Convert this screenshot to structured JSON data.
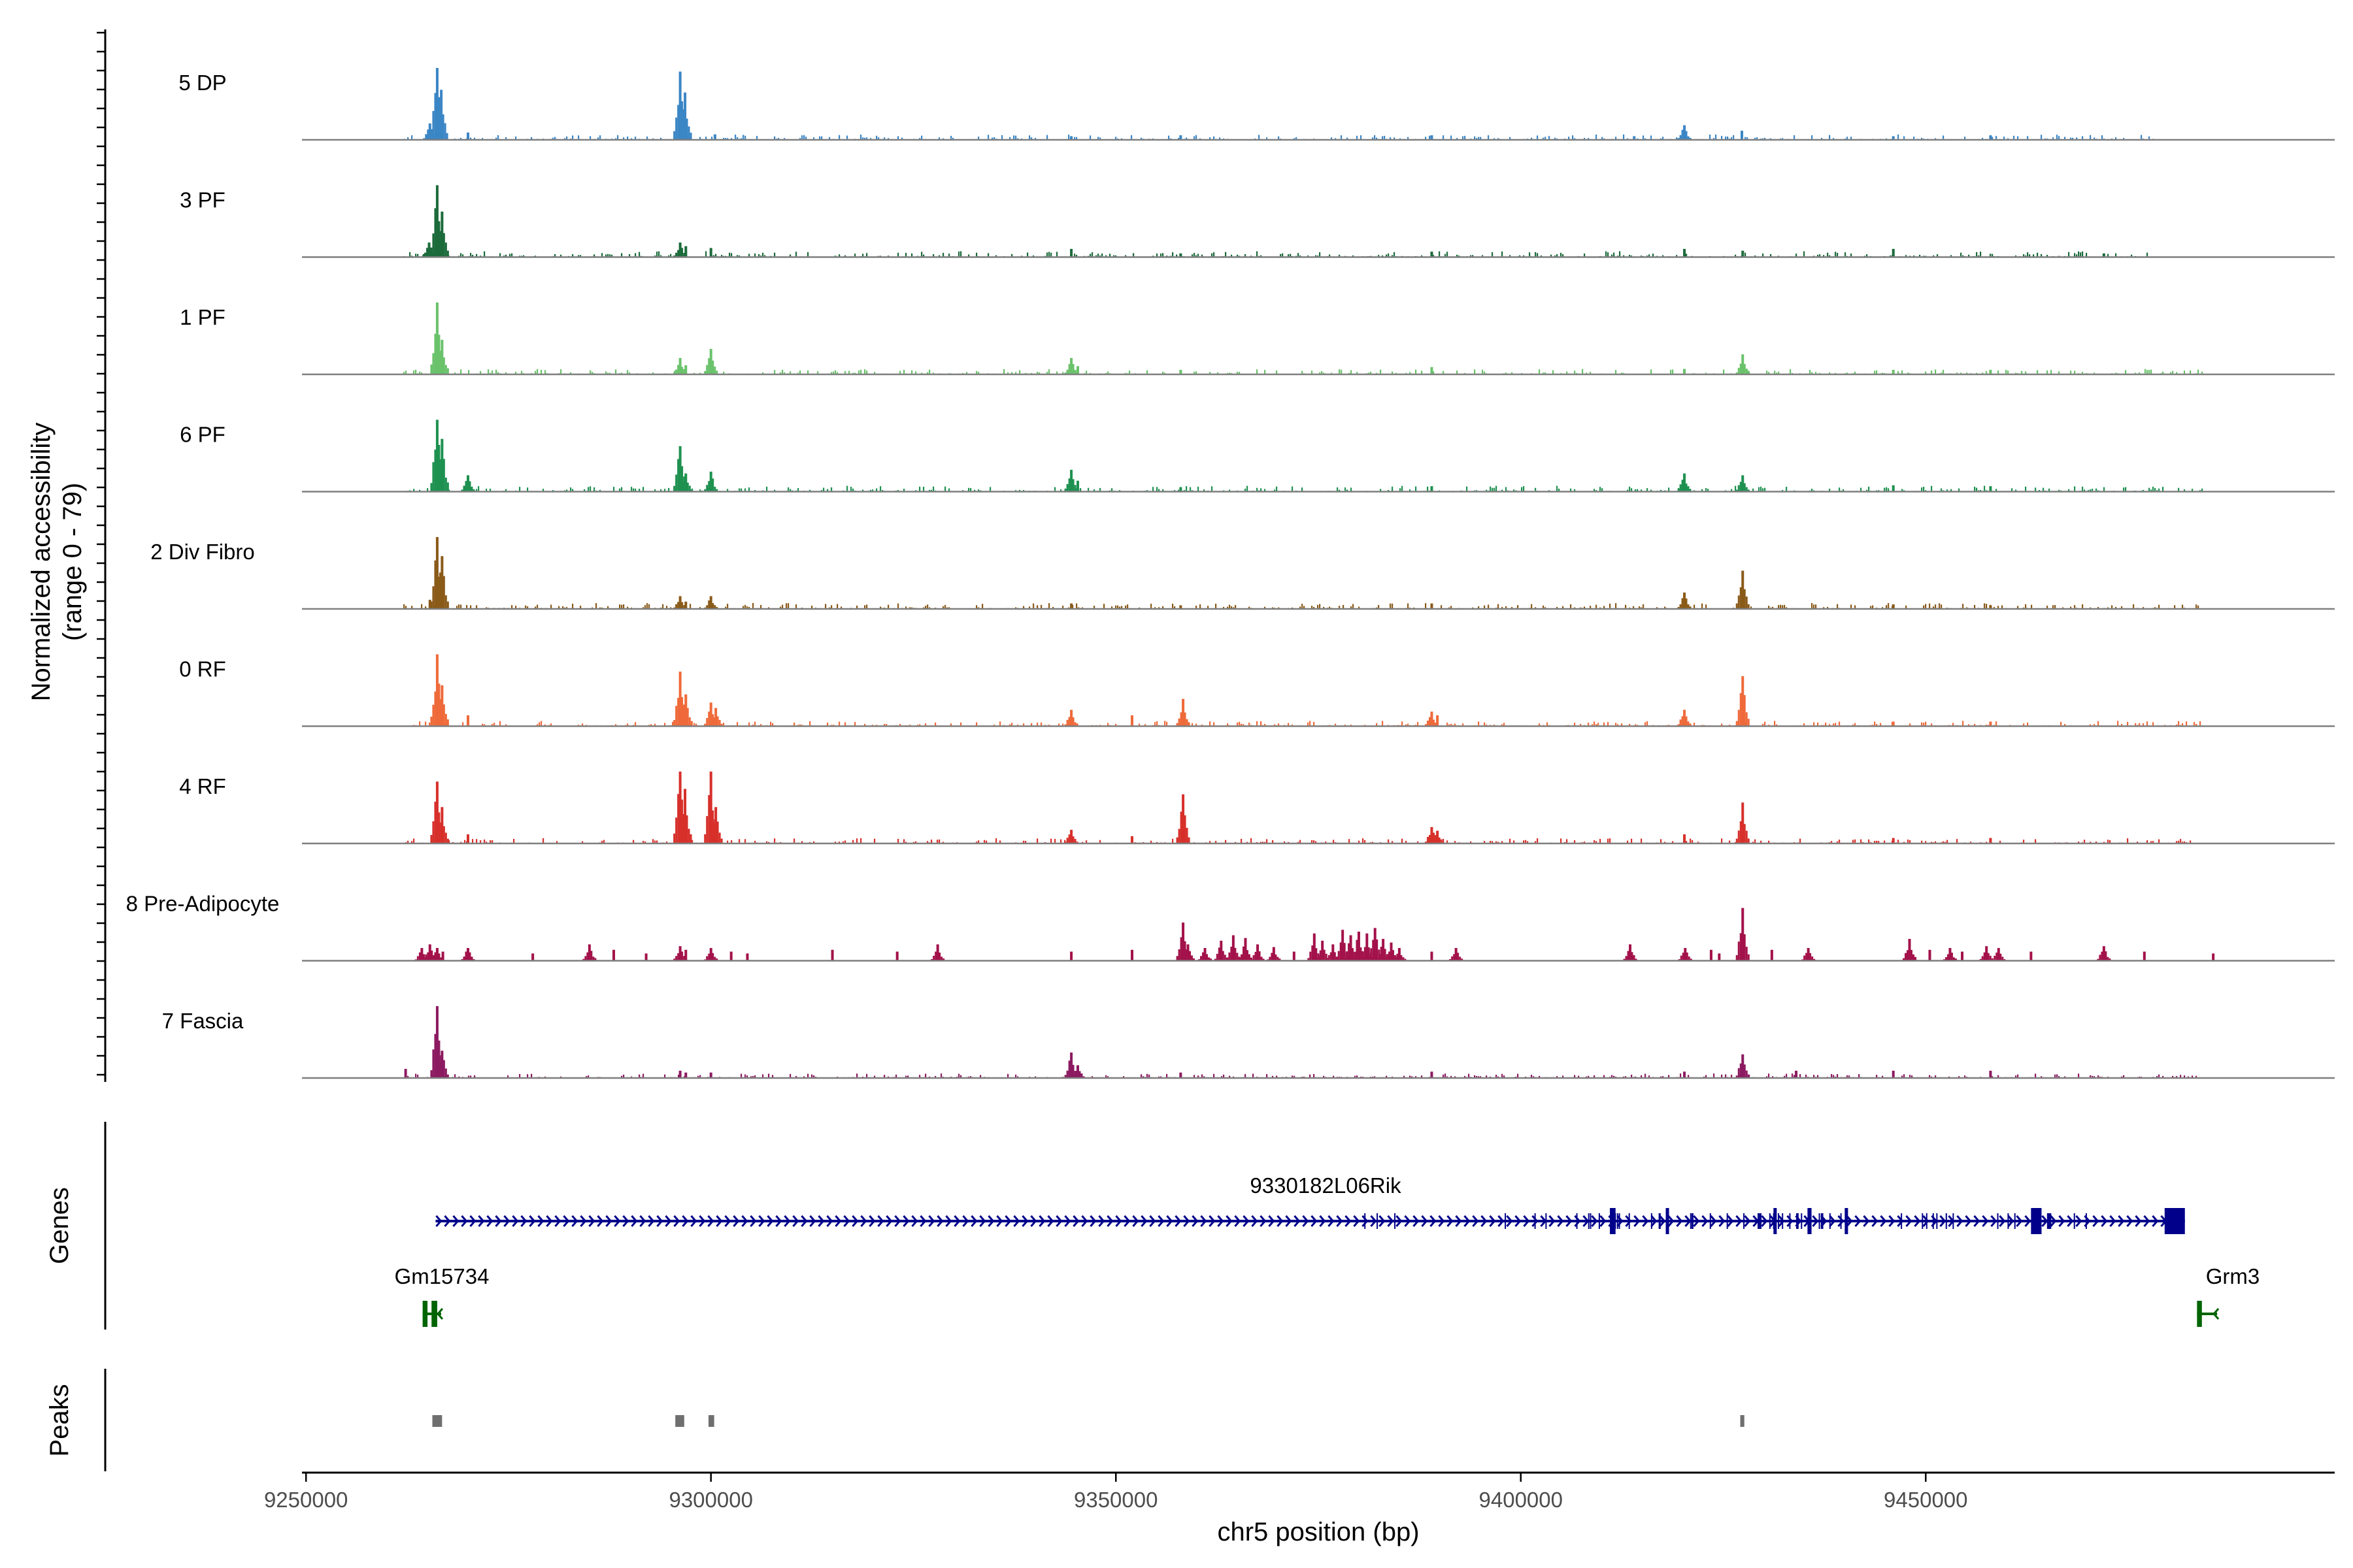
{
  "chart_data": {
    "type": "area",
    "title": "",
    "xlabel": "chr5 position (bp)",
    "ylabel_line1": "Normalized accessibility",
    "ylabel_line2": "(range 0 - 79)",
    "xlim": [
      9249500,
      9500500
    ],
    "xticks": [
      9250000,
      9300000,
      9350000,
      9400000,
      9450000
    ],
    "xtick_labels": [
      "9250000",
      "9300000",
      "9350000",
      "9400000",
      "9450000"
    ],
    "ylim": [
      0,
      79
    ],
    "genes_label": "Genes",
    "peaks_label": "Peaks",
    "tracks": [
      {
        "name": "5 DP",
        "color": "#3b86c5",
        "noise": 1.8,
        "noise_from": 9262000,
        "noise_to": 9478000,
        "peaks": [
          [
            9266200,
            79
          ],
          [
            9266700,
            55
          ],
          [
            9265300,
            18
          ],
          [
            9270000,
            8
          ],
          [
            9296200,
            75
          ],
          [
            9296800,
            52
          ],
          [
            9300500,
            6
          ],
          [
            9344500,
            4
          ],
          [
            9358000,
            5
          ],
          [
            9389000,
            5
          ],
          [
            9414000,
            4
          ],
          [
            9420200,
            16
          ],
          [
            9427300,
            10
          ],
          [
            9446000,
            4
          ],
          [
            9458000,
            5
          ]
        ]
      },
      {
        "name": "3 PF",
        "color": "#1c6b3b",
        "noise": 2.0,
        "noise_from": 9262000,
        "noise_to": 9478000,
        "peaks": [
          [
            9266200,
            79
          ],
          [
            9266800,
            50
          ],
          [
            9265200,
            16
          ],
          [
            9296200,
            16
          ],
          [
            9296900,
            12
          ],
          [
            9300000,
            10
          ],
          [
            9344500,
            9
          ],
          [
            9358000,
            4
          ],
          [
            9389000,
            6
          ],
          [
            9420200,
            9
          ],
          [
            9427400,
            7
          ],
          [
            9446000,
            9
          ],
          [
            9472000,
            4
          ]
        ]
      },
      {
        "name": "1 PF",
        "color": "#6ac26b",
        "noise": 1.8,
        "noise_from": 9262000,
        "noise_to": 9484000,
        "peaks": [
          [
            9266200,
            79
          ],
          [
            9266800,
            38
          ],
          [
            9296200,
            18
          ],
          [
            9296900,
            10
          ],
          [
            9300000,
            28
          ],
          [
            9344500,
            18
          ],
          [
            9345300,
            9
          ],
          [
            9358000,
            5
          ],
          [
            9389000,
            8
          ],
          [
            9420200,
            6
          ],
          [
            9427400,
            22
          ],
          [
            9446000,
            5
          ],
          [
            9458000,
            5
          ]
        ]
      },
      {
        "name": "6 PF",
        "color": "#1e9150",
        "noise": 2.0,
        "noise_from": 9262000,
        "noise_to": 9484000,
        "peaks": [
          [
            9266200,
            79
          ],
          [
            9266800,
            58
          ],
          [
            9270000,
            18
          ],
          [
            9296200,
            50
          ],
          [
            9296900,
            20
          ],
          [
            9300000,
            22
          ],
          [
            9344500,
            24
          ],
          [
            9345300,
            12
          ],
          [
            9358000,
            5
          ],
          [
            9389000,
            6
          ],
          [
            9420200,
            20
          ],
          [
            9427400,
            18
          ],
          [
            9446000,
            7
          ],
          [
            9458000,
            6
          ]
        ]
      },
      {
        "name": "2 Div Fibro",
        "color": "#8a5a19",
        "noise": 2.0,
        "noise_from": 9262000,
        "noise_to": 9484000,
        "peaks": [
          [
            9266200,
            79
          ],
          [
            9266800,
            58
          ],
          [
            9265300,
            10
          ],
          [
            9296200,
            14
          ],
          [
            9296900,
            8
          ],
          [
            9300000,
            14
          ],
          [
            9344500,
            6
          ],
          [
            9358000,
            4
          ],
          [
            9389000,
            6
          ],
          [
            9420200,
            18
          ],
          [
            9427400,
            42
          ],
          [
            9446000,
            5
          ],
          [
            9458000,
            4
          ]
        ]
      },
      {
        "name": "0 RF",
        "color": "#ef6a3a",
        "noise": 1.8,
        "noise_from": 9262000,
        "noise_to": 9484000,
        "peaks": [
          [
            9266200,
            79
          ],
          [
            9266800,
            45
          ],
          [
            9270000,
            12
          ],
          [
            9296200,
            60
          ],
          [
            9296900,
            35
          ],
          [
            9300000,
            26
          ],
          [
            9300600,
            20
          ],
          [
            9344500,
            18
          ],
          [
            9352000,
            12
          ],
          [
            9358300,
            30
          ],
          [
            9389000,
            16
          ],
          [
            9389700,
            12
          ],
          [
            9420200,
            18
          ],
          [
            9427400,
            55
          ],
          [
            9446000,
            5
          ],
          [
            9458000,
            5
          ]
        ]
      },
      {
        "name": "4 RF",
        "color": "#d7302b",
        "noise": 1.8,
        "noise_from": 9262000,
        "noise_to": 9484000,
        "peaks": [
          [
            9266200,
            68
          ],
          [
            9266800,
            40
          ],
          [
            9270000,
            10
          ],
          [
            9296200,
            79
          ],
          [
            9296800,
            60
          ],
          [
            9300000,
            79
          ],
          [
            9300600,
            40
          ],
          [
            9344500,
            15
          ],
          [
            9352000,
            8
          ],
          [
            9358300,
            54
          ],
          [
            9389000,
            18
          ],
          [
            9389700,
            14
          ],
          [
            9420200,
            10
          ],
          [
            9427400,
            45
          ],
          [
            9446000,
            6
          ],
          [
            9458000,
            6
          ]
        ]
      },
      {
        "name": "8 Pre-Adipocyte",
        "color": "#a3124a",
        "noise": 0.0,
        "noise_from": 9262000,
        "noise_to": 9484000,
        "peaks": [
          [
            9264300,
            14
          ],
          [
            9265300,
            18
          ],
          [
            9266200,
            14
          ],
          [
            9266900,
            10
          ],
          [
            9270000,
            14
          ],
          [
            9278000,
            8
          ],
          [
            9285000,
            18
          ],
          [
            9288000,
            12
          ],
          [
            9292000,
            8
          ],
          [
            9296200,
            16
          ],
          [
            9296900,
            12
          ],
          [
            9300000,
            14
          ],
          [
            9302500,
            10
          ],
          [
            9304500,
            8
          ],
          [
            9315000,
            12
          ],
          [
            9323000,
            10
          ],
          [
            9328000,
            18
          ],
          [
            9344500,
            10
          ],
          [
            9352000,
            12
          ],
          [
            9358300,
            42
          ],
          [
            9358900,
            18
          ],
          [
            9361000,
            14
          ],
          [
            9363000,
            22
          ],
          [
            9364500,
            28
          ],
          [
            9366000,
            25
          ],
          [
            9367500,
            18
          ],
          [
            9369500,
            15
          ],
          [
            9372000,
            10
          ],
          [
            9374500,
            30
          ],
          [
            9375500,
            22
          ],
          [
            9376800,
            18
          ],
          [
            9378000,
            34
          ],
          [
            9379000,
            28
          ],
          [
            9380000,
            32
          ],
          [
            9381000,
            30
          ],
          [
            9382000,
            36
          ],
          [
            9383000,
            24
          ],
          [
            9384000,
            20
          ],
          [
            9385000,
            14
          ],
          [
            9389000,
            10
          ],
          [
            9392000,
            14
          ],
          [
            9413500,
            18
          ],
          [
            9420300,
            14
          ],
          [
            9423500,
            12
          ],
          [
            9424500,
            8
          ],
          [
            9427400,
            58
          ],
          [
            9431000,
            12
          ],
          [
            9435500,
            14
          ],
          [
            9448000,
            24
          ],
          [
            9450500,
            12
          ],
          [
            9453000,
            14
          ],
          [
            9454500,
            10
          ],
          [
            9457500,
            16
          ],
          [
            9459000,
            14
          ],
          [
            9463000,
            10
          ],
          [
            9472000,
            16
          ],
          [
            9477000,
            10
          ],
          [
            9485500,
            8
          ]
        ]
      },
      {
        "name": "7 Fascia",
        "color": "#8c1a61",
        "noise": 1.5,
        "noise_from": 9262000,
        "noise_to": 9484000,
        "peaks": [
          [
            9266200,
            79
          ],
          [
            9266800,
            30
          ],
          [
            9262300,
            10
          ],
          [
            9296200,
            8
          ],
          [
            9296900,
            6
          ],
          [
            9300000,
            6
          ],
          [
            9344500,
            28
          ],
          [
            9345300,
            14
          ],
          [
            9358000,
            6
          ],
          [
            9389000,
            7
          ],
          [
            9420200,
            7
          ],
          [
            9427400,
            26
          ],
          [
            9434000,
            8
          ],
          [
            9446000,
            8
          ],
          [
            9458000,
            8
          ]
        ]
      }
    ],
    "genes": [
      {
        "name": "9330182L06Rik",
        "start": 9266000,
        "end": 9482000,
        "strand": "+",
        "color": "#00008b",
        "exons": [
          [
            9411000,
            9411700
          ],
          [
            9417900,
            9418300
          ],
          [
            9431200,
            9431600
          ],
          [
            9435400,
            9435900
          ],
          [
            9440000,
            9440400
          ],
          [
            9463000,
            9464300
          ],
          [
            9479500,
            9482000
          ]
        ]
      },
      {
        "name": "Gm15734",
        "start": 9264400,
        "end": 9266200,
        "strand": "-",
        "color": "#006400",
        "exons": [
          [
            9264400,
            9265000
          ],
          [
            9265500,
            9266200
          ]
        ]
      },
      {
        "name": "Grm3",
        "start": 9483500,
        "end": 9485500,
        "strand": "-",
        "color": "#006400",
        "exons": [
          [
            9483500,
            9484100
          ]
        ]
      }
    ],
    "peaks": [
      {
        "start": 9265600,
        "end": 9266800,
        "color": "#6f6f6f"
      },
      {
        "start": 9295600,
        "end": 9296700,
        "color": "#6f6f6f"
      },
      {
        "start": 9299700,
        "end": 9300400,
        "color": "#6f6f6f"
      },
      {
        "start": 9427100,
        "end": 9427600,
        "color": "#6f6f6f"
      }
    ]
  }
}
